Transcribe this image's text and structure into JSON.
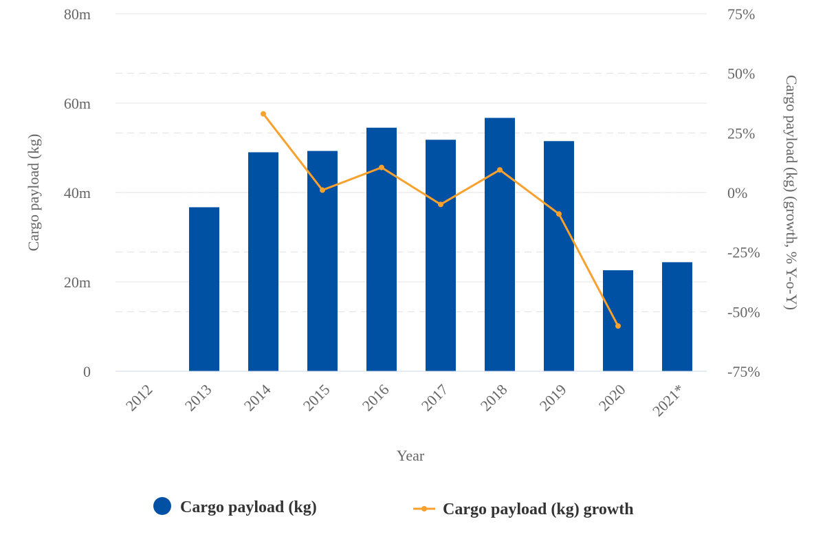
{
  "chart_data": {
    "type": "bar",
    "categories": [
      "2012",
      "2013",
      "2014",
      "2015",
      "2016",
      "2017",
      "2018",
      "2019",
      "2020",
      "2021*"
    ],
    "xlabel": "Year",
    "ylabel": "Cargo payload (kg)",
    "y2label": "Cargo payload (kg) (growth, % Y-o-Y)",
    "ylim": [
      0,
      80000000
    ],
    "y2lim": [
      -75,
      75
    ],
    "y_ticks": [
      "0",
      "20m",
      "40m",
      "60m",
      "80m"
    ],
    "y2_ticks": [
      "-75%",
      "-50%",
      "-25%",
      "0%",
      "25%",
      "50%",
      "75%"
    ],
    "series": [
      {
        "name": "Cargo payload (kg)",
        "type": "bar",
        "axis": "left",
        "color": "#0051A3",
        "values": [
          null,
          36700000,
          49000000,
          49300000,
          54500000,
          51800000,
          56700000,
          51500000,
          22600000,
          24400000
        ]
      },
      {
        "name": "Cargo payload (kg) growth",
        "type": "line",
        "axis": "right",
        "color": "#F9A12E",
        "values": [
          null,
          null,
          33,
          1,
          10.5,
          -5,
          9.5,
          -9,
          -56,
          null
        ]
      }
    ],
    "grid": true,
    "legend_position": "bottom"
  }
}
